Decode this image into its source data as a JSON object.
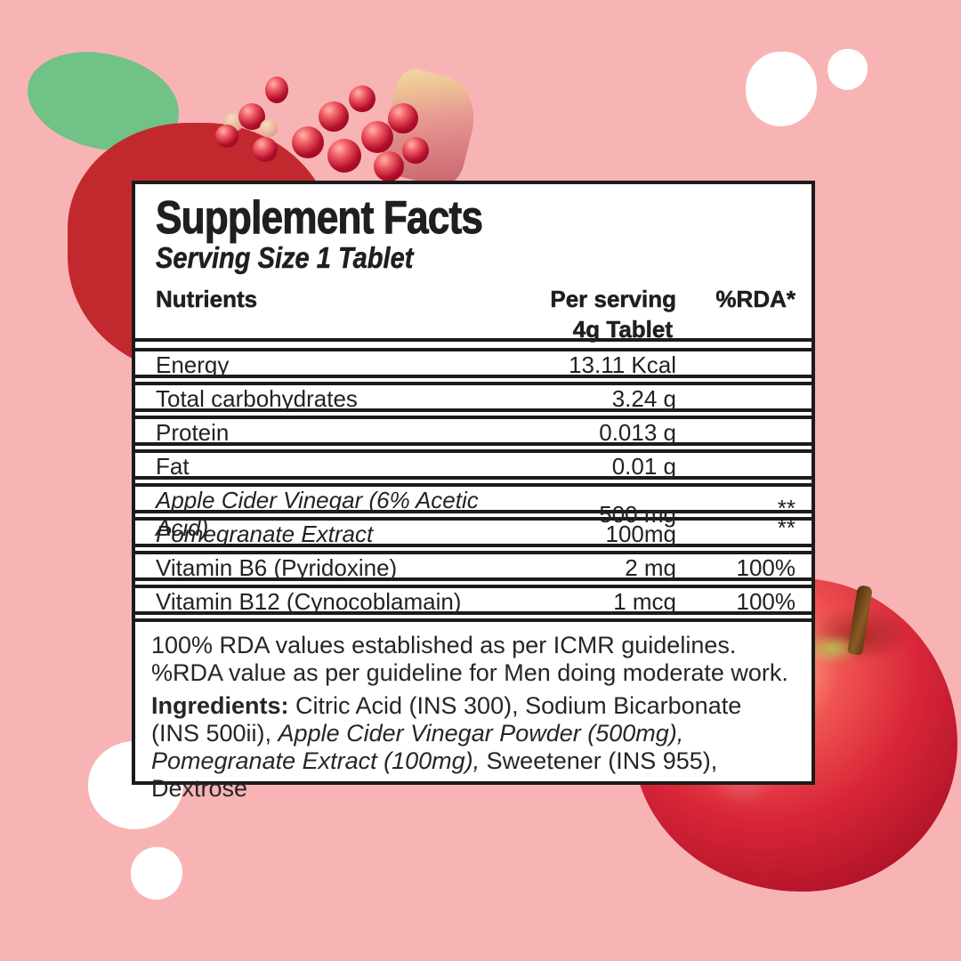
{
  "colors": {
    "background_pink": "#f8b4b4",
    "panel_border": "#1b1b1b",
    "text": "#1f1f1f",
    "flat_apple_red": "#c1292e",
    "leaf_green": "#70c287",
    "white_dot": "#ffffff",
    "apple_photo_red": "#d82638"
  },
  "panel": {
    "title": "Supplement Facts",
    "serving_size": "Serving Size 1 Tablet",
    "columns": {
      "nutrients": "Nutrients",
      "per_serving_line1": "Per serving",
      "per_serving_line2": "4g Tablet",
      "rda": "%RDA*"
    },
    "rows": [
      {
        "nutrient": "Energy",
        "amount": "13.11 Kcal",
        "rda": "",
        "name_class": "",
        "rda_class": ""
      },
      {
        "nutrient": "Total carbohydrates",
        "amount": "3.24 g",
        "rda": "",
        "name_class": "",
        "rda_class": ""
      },
      {
        "nutrient": "Protein",
        "amount": "0.013 g",
        "rda": "",
        "name_class": "",
        "rda_class": ""
      },
      {
        "nutrient": "Fat",
        "amount": "0.01 g",
        "rda": "",
        "name_class": "",
        "rda_class": ""
      },
      {
        "nutrient": "Apple Cider Vinegar (6% Acetic Acid)",
        "amount": "500 mg",
        "rda": "**",
        "name_class": "name-italic",
        "rda_class": "rda-sup"
      },
      {
        "nutrient": "Pomegranate Extract",
        "amount": "100mg",
        "rda": "**",
        "name_class": "name-italic",
        "rda_class": "rda-sup"
      },
      {
        "nutrient": "Vitamin B6 (Pyridoxine)",
        "amount": "2 mg",
        "rda": "100%",
        "name_class": "",
        "rda_class": ""
      },
      {
        "nutrient": "Vitamin B12 (Cynocoblamain)",
        "amount": "1 mcg",
        "rda": "100%",
        "name_class": "",
        "rda_class": ""
      }
    ],
    "footnotes": {
      "line1": "100% RDA values established as per ICMR guidelines.",
      "line2": "%RDA value as per guideline for Men doing moderate work.",
      "ingredients_segments": [
        {
          "text": "Ingredients: ",
          "style": "bold"
        },
        {
          "text": "Citric Acid (INS 300), Sodium Bicarbonate (INS 500ii), ",
          "style": "normal"
        },
        {
          "text": "Apple Cider Vinegar Powder (500mg), Pomegranate Extract (100mg),",
          "style": "italic"
        },
        {
          "text": " Sweetener (INS 955), Dextrose",
          "style": "normal"
        }
      ]
    }
  }
}
